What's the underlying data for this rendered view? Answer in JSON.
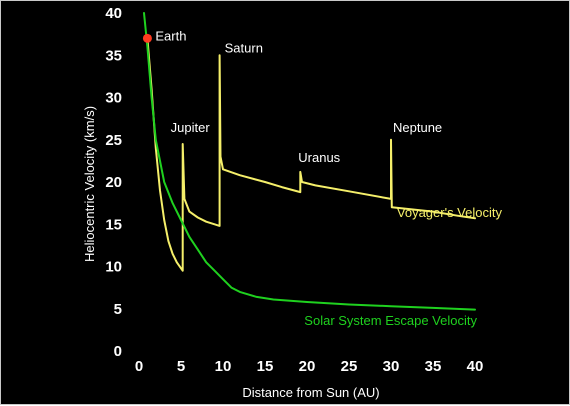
{
  "colors": {
    "background": "#000000",
    "text": "#ffffff",
    "voyager": "#f5ef6a",
    "escape": "#1fd11f",
    "earth_marker": "#ff3b1f"
  },
  "chart_data": {
    "type": "line",
    "title": "",
    "xlabel": "Distance from Sun (AU)",
    "ylabel": "Heliocentric Velocity (km/s)",
    "xlim": [
      0,
      40
    ],
    "ylim": [
      0,
      40
    ],
    "x_ticks": [
      0,
      5,
      10,
      15,
      20,
      25,
      30,
      35,
      40
    ],
    "y_ticks": [
      0,
      5,
      10,
      15,
      20,
      25,
      30,
      35,
      40
    ],
    "grid": false,
    "series": [
      {
        "name": "Voyager's Velocity",
        "color": "#f5ef6a",
        "points": [
          [
            1.0,
            37.0
          ],
          [
            1.5,
            31.0
          ],
          [
            2.0,
            24.0
          ],
          [
            2.5,
            19.0
          ],
          [
            3.0,
            15.5
          ],
          [
            3.5,
            13.0
          ],
          [
            4.0,
            11.5
          ],
          [
            4.5,
            10.5
          ],
          [
            5.2,
            9.5
          ],
          [
            5.2,
            24.5
          ],
          [
            5.4,
            18.0
          ],
          [
            6.0,
            16.5
          ],
          [
            7.0,
            15.8
          ],
          [
            8.0,
            15.3
          ],
          [
            9.0,
            15.0
          ],
          [
            9.6,
            14.8
          ],
          [
            9.6,
            35.0
          ],
          [
            9.7,
            23.0
          ],
          [
            10.0,
            21.5
          ],
          [
            12.0,
            20.8
          ],
          [
            15.0,
            20.0
          ],
          [
            17.0,
            19.4
          ],
          [
            19.2,
            18.8
          ],
          [
            19.2,
            21.2
          ],
          [
            19.4,
            20.0
          ],
          [
            21.0,
            19.6
          ],
          [
            25.0,
            18.9
          ],
          [
            30.0,
            18.0
          ],
          [
            30.0,
            25.0
          ],
          [
            30.1,
            17.0
          ],
          [
            35.0,
            16.5
          ],
          [
            38.0,
            16.0
          ],
          [
            40.0,
            15.7
          ]
        ]
      },
      {
        "name": "Solar System Escape  Velocity",
        "color": "#1fd11f",
        "points": [
          [
            0.6,
            40.0
          ],
          [
            1.0,
            36.0
          ],
          [
            1.5,
            30.0
          ],
          [
            2.0,
            25.0
          ],
          [
            3.0,
            20.0
          ],
          [
            4.0,
            17.5
          ],
          [
            5.0,
            15.5
          ],
          [
            6.0,
            13.5
          ],
          [
            7.0,
            12.0
          ],
          [
            8.0,
            10.5
          ],
          [
            9.0,
            9.5
          ],
          [
            10.0,
            8.5
          ],
          [
            11.0,
            7.5
          ],
          [
            12.0,
            7.0
          ],
          [
            14.0,
            6.4
          ],
          [
            16.0,
            6.1
          ],
          [
            20.0,
            5.8
          ],
          [
            25.0,
            5.5
          ],
          [
            30.0,
            5.3
          ],
          [
            35.0,
            5.1
          ],
          [
            40.0,
            4.9
          ]
        ]
      }
    ],
    "marker": {
      "label": "Earth",
      "x": 1.0,
      "y": 37.0
    },
    "annotations": [
      {
        "text": "Earth",
        "x": 1.0,
        "y": 37.0
      },
      {
        "text": "Jupiter",
        "x": 5.2,
        "y": 24.5
      },
      {
        "text": "Saturn",
        "x": 9.6,
        "y": 35.0
      },
      {
        "text": "Uranus",
        "x": 19.2,
        "y": 21.2
      },
      {
        "text": "Neptune",
        "x": 30.0,
        "y": 25.0
      }
    ],
    "legend_labels": [
      {
        "text": "Voyager's Velocity",
        "series": 0,
        "placement": "right, below Voyager curve"
      },
      {
        "text": "Solar System Escape  Velocity",
        "series": 1,
        "placement": "bottom-right, below escape curve"
      }
    ]
  }
}
